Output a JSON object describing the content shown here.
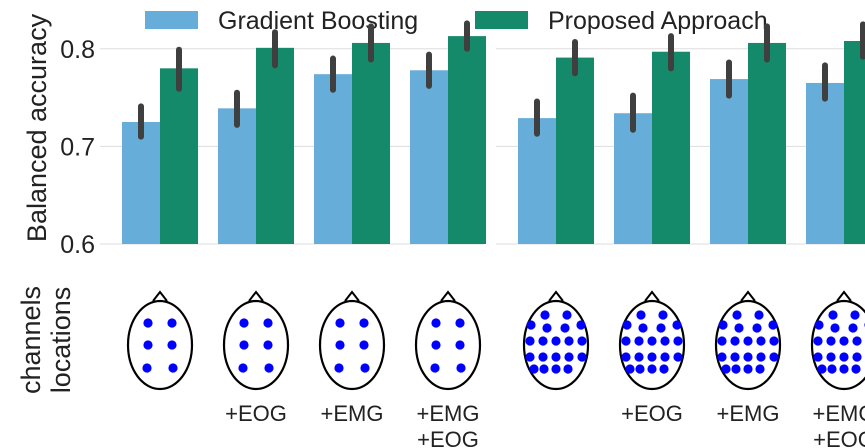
{
  "chart_data": {
    "type": "bar",
    "ylabel": "Balanced accuracy",
    "ylim": [
      0.6,
      0.85
    ],
    "yticks": [
      "0.6",
      "0.7",
      "0.8"
    ],
    "grid": true,
    "legend_position": "top",
    "colors": {
      "Gradient Boosting": "#66aed9",
      "Proposed Approach": "#158a6a",
      "errorbar": "#3f3f3f",
      "electrode": "#0000ff",
      "head_outline": "#000000",
      "grid": "#dddddd"
    },
    "bottom_row_label": [
      "channels",
      "locations"
    ],
    "panels": [
      {
        "channels": 6,
        "categories": [
          "",
          "+EOG",
          "+EMG",
          "+EMG\n+EOG"
        ],
        "series": [
          {
            "name": "Gradient Boosting",
            "values": [
              0.725,
              0.739,
              0.774,
              0.778
            ],
            "err_low": [
              0.71,
              0.722,
              0.758,
              0.762
            ],
            "err_high": [
              0.741,
              0.755,
              0.79,
              0.794
            ]
          },
          {
            "name": "Proposed Approach",
            "values": [
              0.78,
              0.801,
              0.806,
              0.813
            ],
            "err_low": [
              0.759,
              0.783,
              0.789,
              0.8
            ],
            "err_high": [
              0.799,
              0.817,
              0.823,
              0.826
            ]
          }
        ]
      },
      {
        "channels": 20,
        "categories": [
          "",
          "+EOG",
          "+EMG",
          "+EMG\n+EOG"
        ],
        "series": [
          {
            "name": "Gradient Boosting",
            "values": [
              0.729,
              0.734,
              0.769,
              0.765
            ],
            "err_low": [
              0.713,
              0.717,
              0.752,
              0.749
            ],
            "err_high": [
              0.746,
              0.752,
              0.786,
              0.783
            ]
          },
          {
            "name": "Proposed Approach",
            "values": [
              0.791,
              0.797,
              0.806,
              0.808
            ],
            "err_low": [
              0.775,
              0.78,
              0.789,
              0.792
            ],
            "err_high": [
              0.807,
              0.813,
              0.823,
              0.825
            ]
          }
        ]
      }
    ]
  }
}
